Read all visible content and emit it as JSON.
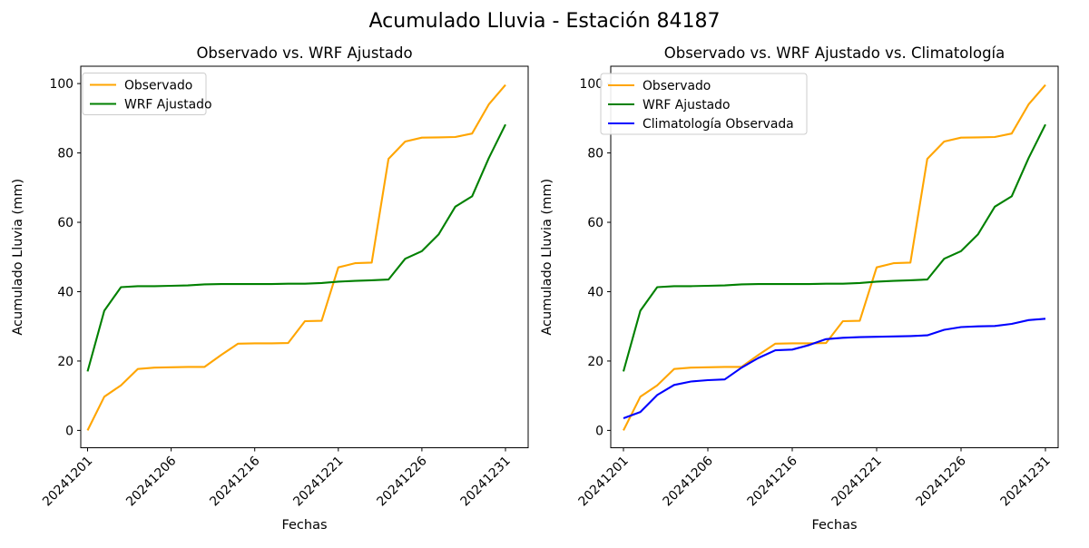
{
  "suptitle": "Acumulado Lluvia - Estación 84187",
  "chart_data": [
    {
      "type": "line",
      "title": "Observado vs. WRF Ajustado",
      "xlabel": "Fechas",
      "ylabel": "Acumulado Lluvia (mm)",
      "ylim": [
        -5,
        105
      ],
      "yticks": [
        0,
        20,
        40,
        60,
        80,
        100
      ],
      "grid": false,
      "legend_position": "upper left",
      "categories": [
        "20241201",
        "20241202",
        "20241203",
        "20241204",
        "20241205",
        "20241206",
        "20241207",
        "20241208",
        "20241209",
        "20241210",
        "20241216",
        "20241217",
        "20241218",
        "20241219",
        "20241220",
        "20241221",
        "20241222",
        "20241223",
        "20241224",
        "20241225",
        "20241226",
        "20241227",
        "20241228",
        "20241229",
        "20241230",
        "20241231"
      ],
      "xtick_indices": [
        0,
        5,
        10,
        15,
        20,
        25
      ],
      "xtick_labels": [
        "20241201",
        "20241206",
        "20241216",
        "20241221",
        "20241226",
        "20241231"
      ],
      "series": [
        {
          "name": "Observado",
          "color": "#FFA500",
          "values": [
            0,
            9.7,
            13.0,
            17.7,
            18.1,
            18.2,
            18.3,
            18.3,
            21.8,
            25.0,
            25.1,
            25.1,
            25.2,
            31.5,
            31.6,
            47.0,
            48.2,
            48.4,
            78.3,
            83.3,
            84.4,
            84.5,
            84.6,
            85.6,
            94.0,
            99.6
          ]
        },
        {
          "name": "WRF Ajustado",
          "color": "#008000",
          "values": [
            17.0,
            34.5,
            41.3,
            41.6,
            41.6,
            41.7,
            41.8,
            42.1,
            42.2,
            42.2,
            42.2,
            42.2,
            42.3,
            42.3,
            42.5,
            42.9,
            43.1,
            43.3,
            43.5,
            49.5,
            51.7,
            56.5,
            64.5,
            67.5,
            78.5,
            88.2
          ]
        }
      ]
    },
    {
      "type": "line",
      "title": "Observado vs. WRF Ajustado vs. Climatología",
      "xlabel": "Fechas",
      "ylabel": "Acumulado Lluvia (mm)",
      "ylim": [
        -5,
        105
      ],
      "yticks": [
        0,
        20,
        40,
        60,
        80,
        100
      ],
      "grid": false,
      "legend_position": "upper left",
      "categories": [
        "20241201",
        "20241202",
        "20241203",
        "20241204",
        "20241205",
        "20241206",
        "20241207",
        "20241208",
        "20241209",
        "20241210",
        "20241216",
        "20241217",
        "20241218",
        "20241219",
        "20241220",
        "20241221",
        "20241222",
        "20241223",
        "20241224",
        "20241225",
        "20241226",
        "20241227",
        "20241228",
        "20241229",
        "20241230",
        "20241231"
      ],
      "xtick_indices": [
        0,
        5,
        10,
        15,
        20,
        25
      ],
      "xtick_labels": [
        "20241201",
        "20241206",
        "20241216",
        "20241221",
        "20241226",
        "20241231"
      ],
      "series": [
        {
          "name": "Observado",
          "color": "#FFA500",
          "values": [
            0,
            9.7,
            13.0,
            17.7,
            18.1,
            18.2,
            18.3,
            18.3,
            21.8,
            25.0,
            25.1,
            25.1,
            25.2,
            31.5,
            31.6,
            47.0,
            48.2,
            48.4,
            78.3,
            83.3,
            84.4,
            84.5,
            84.6,
            85.6,
            94.0,
            99.6
          ]
        },
        {
          "name": "WRF Ajustado",
          "color": "#008000",
          "values": [
            17.0,
            34.5,
            41.3,
            41.6,
            41.6,
            41.7,
            41.8,
            42.1,
            42.2,
            42.2,
            42.2,
            42.2,
            42.3,
            42.3,
            42.5,
            42.9,
            43.1,
            43.3,
            43.5,
            49.5,
            51.7,
            56.5,
            64.5,
            67.5,
            78.5,
            88.2
          ]
        },
        {
          "name": "Climatología Observada",
          "color": "#0000FF",
          "values": [
            3.5,
            5.3,
            10.2,
            13.1,
            14.1,
            14.5,
            14.7,
            18.1,
            20.9,
            23.1,
            23.3,
            24.6,
            26.3,
            26.7,
            26.9,
            27.0,
            27.1,
            27.2,
            27.4,
            29.0,
            29.8,
            30.0,
            30.1,
            30.7,
            31.8,
            32.2
          ]
        }
      ]
    }
  ]
}
